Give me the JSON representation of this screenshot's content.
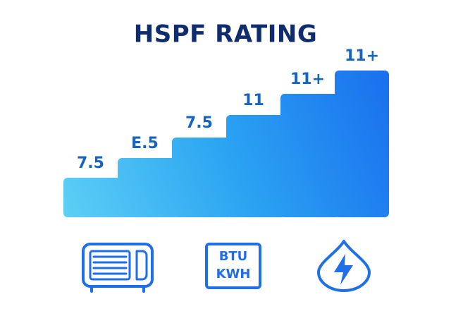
{
  "title": "HSPF RATING",
  "steps": [
    "7.5",
    "E.5",
    "7.5",
    "11",
    "11+",
    "11+"
  ],
  "btu_icon": {
    "line1": "BTU",
    "line2": "KWH"
  }
}
